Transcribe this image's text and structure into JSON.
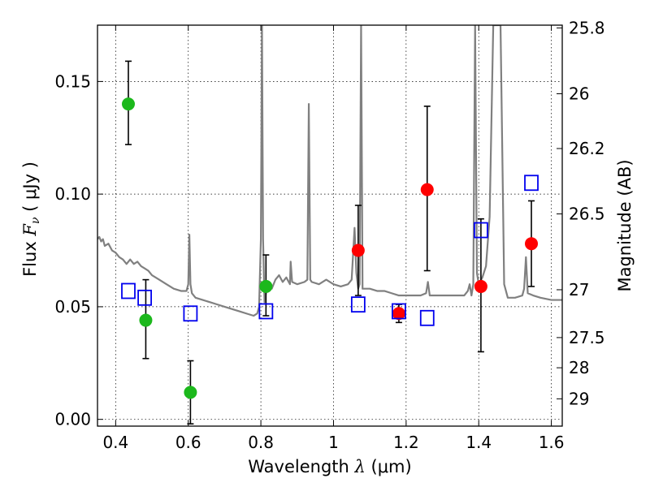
{
  "chart_data": {
    "type": "scatter",
    "xlabel": {
      "prefix": "Wavelength  ",
      "symbol": "λ",
      "units": " (μm)"
    },
    "ylabel": {
      "prefix": "Flux  ",
      "symbol": "F",
      "subscript": "ν",
      "units": "  ( μJy )"
    },
    "y2label": "Magnitude (AB)",
    "xlim": [
      0.35,
      1.63
    ],
    "ylim": [
      -0.003,
      0.175
    ],
    "grid": true,
    "x_ticks": [
      0.4,
      0.6,
      0.8,
      1.0,
      1.2,
      1.4,
      1.6
    ],
    "x_tick_labels": [
      "0.4",
      "0.6",
      "0.8",
      "1",
      "1.2",
      "1.4",
      "1.6"
    ],
    "y_ticks": [
      0.0,
      0.05,
      0.1,
      0.15
    ],
    "y_tick_labels": [
      "0.00",
      "0.05",
      "0.10",
      "0.15"
    ],
    "mag_ticks": [
      25.8,
      26,
      26.2,
      26.5,
      27,
      27.5,
      28,
      29
    ],
    "mag_tick_labels": [
      "25.8",
      "26",
      "26.2",
      "26.5",
      "27",
      "27.5",
      "28",
      "29"
    ],
    "colors": {
      "green": "#1cb81c",
      "red": "#ff0000",
      "model_squares": "#0000ee",
      "spectrum": "#808080",
      "errorbar": "#000000"
    },
    "series": [
      {
        "name": "photometry (green)",
        "marker": "circle",
        "color": "#1cb81c",
        "points": [
          {
            "x": 0.435,
            "y": 0.14,
            "err_lo": 0.018,
            "err_hi": 0.019
          },
          {
            "x": 0.483,
            "y": 0.044,
            "err_lo": 0.017,
            "err_hi": 0.018
          },
          {
            "x": 0.606,
            "y": 0.012,
            "err_lo": 0.014,
            "err_hi": 0.014
          },
          {
            "x": 0.814,
            "y": 0.059,
            "err_lo": 0.013,
            "err_hi": 0.014
          }
        ]
      },
      {
        "name": "photometry (red)",
        "marker": "circle",
        "color": "#ff0000",
        "points": [
          {
            "x": 1.068,
            "y": 0.075,
            "err_lo": 0.02,
            "err_hi": 0.02
          },
          {
            "x": 1.18,
            "y": 0.047,
            "err_lo": 0.004,
            "err_hi": 0.004
          },
          {
            "x": 1.258,
            "y": 0.102,
            "err_lo": 0.036,
            "err_hi": 0.037
          },
          {
            "x": 1.406,
            "y": 0.059,
            "err_lo": 0.029,
            "err_hi": 0.03
          },
          {
            "x": 1.545,
            "y": 0.078,
            "err_lo": 0.019,
            "err_hi": 0.019
          }
        ]
      },
      {
        "name": "model photometry",
        "marker": "open-square",
        "color": "#0000ee",
        "points": [
          {
            "x": 0.435,
            "y": 0.057
          },
          {
            "x": 0.48,
            "y": 0.054
          },
          {
            "x": 0.606,
            "y": 0.047
          },
          {
            "x": 0.814,
            "y": 0.048
          },
          {
            "x": 1.068,
            "y": 0.051
          },
          {
            "x": 1.18,
            "y": 0.048
          },
          {
            "x": 1.258,
            "y": 0.045
          },
          {
            "x": 1.406,
            "y": 0.084
          },
          {
            "x": 1.545,
            "y": 0.105
          }
        ]
      }
    ],
    "spectrum": {
      "name": "model spectrum",
      "color": "#808080",
      "points": [
        [
          0.35,
          0.08
        ],
        [
          0.355,
          0.081
        ],
        [
          0.36,
          0.079
        ],
        [
          0.365,
          0.08
        ],
        [
          0.37,
          0.077
        ],
        [
          0.38,
          0.078
        ],
        [
          0.39,
          0.075
        ],
        [
          0.4,
          0.074
        ],
        [
          0.41,
          0.072
        ],
        [
          0.42,
          0.071
        ],
        [
          0.43,
          0.069
        ],
        [
          0.44,
          0.071
        ],
        [
          0.45,
          0.069
        ],
        [
          0.46,
          0.07
        ],
        [
          0.47,
          0.068
        ],
        [
          0.48,
          0.067
        ],
        [
          0.49,
          0.066
        ],
        [
          0.5,
          0.064
        ],
        [
          0.52,
          0.062
        ],
        [
          0.54,
          0.06
        ],
        [
          0.56,
          0.058
        ],
        [
          0.58,
          0.057
        ],
        [
          0.595,
          0.057
        ],
        [
          0.6,
          0.06
        ],
        [
          0.603,
          0.082
        ],
        [
          0.606,
          0.06
        ],
        [
          0.61,
          0.056
        ],
        [
          0.62,
          0.054
        ],
        [
          0.64,
          0.053
        ],
        [
          0.66,
          0.052
        ],
        [
          0.68,
          0.051
        ],
        [
          0.7,
          0.05
        ],
        [
          0.72,
          0.049
        ],
        [
          0.74,
          0.048
        ],
        [
          0.76,
          0.047
        ],
        [
          0.78,
          0.046
        ],
        [
          0.79,
          0.047
        ],
        [
          0.795,
          0.05
        ],
        [
          0.8,
          0.08
        ],
        [
          0.803,
          0.175
        ],
        [
          0.806,
          0.08
        ],
        [
          0.81,
          0.052
        ],
        [
          0.815,
          0.057
        ],
        [
          0.82,
          0.061
        ],
        [
          0.83,
          0.058
        ],
        [
          0.84,
          0.062
        ],
        [
          0.85,
          0.064
        ],
        [
          0.86,
          0.061
        ],
        [
          0.87,
          0.063
        ],
        [
          0.88,
          0.06
        ],
        [
          0.882,
          0.07
        ],
        [
          0.886,
          0.061
        ],
        [
          0.9,
          0.06
        ],
        [
          0.92,
          0.061
        ],
        [
          0.928,
          0.062
        ],
        [
          0.932,
          0.14
        ],
        [
          0.936,
          0.062
        ],
        [
          0.94,
          0.061
        ],
        [
          0.96,
          0.06
        ],
        [
          0.98,
          0.062
        ],
        [
          1.0,
          0.06
        ],
        [
          1.02,
          0.059
        ],
        [
          1.04,
          0.06
        ],
        [
          1.05,
          0.062
        ],
        [
          1.058,
          0.085
        ],
        [
          1.063,
          0.065
        ],
        [
          1.068,
          0.058
        ],
        [
          1.072,
          0.06
        ],
        [
          1.076,
          0.175
        ],
        [
          1.08,
          0.058
        ],
        [
          1.09,
          0.058
        ],
        [
          1.1,
          0.058
        ],
        [
          1.12,
          0.057
        ],
        [
          1.14,
          0.057
        ],
        [
          1.16,
          0.056
        ],
        [
          1.18,
          0.055
        ],
        [
          1.2,
          0.055
        ],
        [
          1.22,
          0.055
        ],
        [
          1.24,
          0.055
        ],
        [
          1.255,
          0.056
        ],
        [
          1.26,
          0.061
        ],
        [
          1.265,
          0.055
        ],
        [
          1.28,
          0.055
        ],
        [
          1.3,
          0.055
        ],
        [
          1.32,
          0.055
        ],
        [
          1.34,
          0.055
        ],
        [
          1.36,
          0.055
        ],
        [
          1.37,
          0.057
        ],
        [
          1.375,
          0.06
        ],
        [
          1.38,
          0.055
        ],
        [
          1.385,
          0.06
        ],
        [
          1.39,
          0.175
        ],
        [
          1.395,
          0.065
        ],
        [
          1.4,
          0.06
        ],
        [
          1.41,
          0.063
        ],
        [
          1.42,
          0.068
        ],
        [
          1.43,
          0.09
        ],
        [
          1.44,
          0.175
        ],
        [
          1.46,
          0.175
        ],
        [
          1.47,
          0.06
        ],
        [
          1.48,
          0.054
        ],
        [
          1.5,
          0.054
        ],
        [
          1.52,
          0.055
        ],
        [
          1.525,
          0.058
        ],
        [
          1.53,
          0.072
        ],
        [
          1.535,
          0.056
        ],
        [
          1.55,
          0.055
        ],
        [
          1.57,
          0.054
        ],
        [
          1.6,
          0.053
        ],
        [
          1.63,
          0.053
        ]
      ]
    }
  }
}
